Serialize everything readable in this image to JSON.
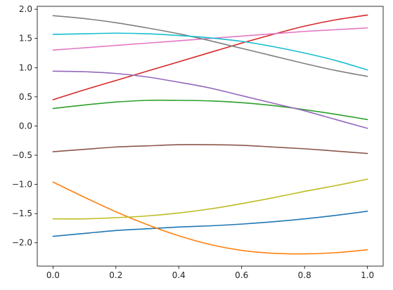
{
  "chart_data": {
    "type": "line",
    "title": "",
    "xlabel": "",
    "ylabel": "",
    "xlim": [
      -0.05,
      1.05
    ],
    "ylim": [
      -2.4,
      2.05
    ],
    "grid": false,
    "legend": "none",
    "x_ticks": [
      {
        "value": 0.0,
        "label": "0.0"
      },
      {
        "value": 0.2,
        "label": "0.2"
      },
      {
        "value": 0.4,
        "label": "0.4"
      },
      {
        "value": 0.6,
        "label": "0.6"
      },
      {
        "value": 0.8,
        "label": "0.8"
      },
      {
        "value": 1.0,
        "label": "1.0"
      }
    ],
    "y_ticks": [
      {
        "value": 2.0,
        "label": "2.0"
      },
      {
        "value": 1.5,
        "label": "1.5"
      },
      {
        "value": 1.0,
        "label": "1.0"
      },
      {
        "value": 0.5,
        "label": "0.5"
      },
      {
        "value": 0.0,
        "label": "0.0"
      },
      {
        "value": -0.5,
        "label": "−0.5"
      },
      {
        "value": -1.0,
        "label": "−1.0"
      },
      {
        "value": -1.5,
        "label": "−1.5"
      },
      {
        "value": -2.0,
        "label": "−2.0"
      }
    ],
    "x": [
      0.0,
      0.1,
      0.2,
      0.3,
      0.4,
      0.5,
      0.6,
      0.7,
      0.8,
      0.9,
      1.0
    ],
    "series": [
      {
        "color": "#1f77b4",
        "values": [
          -1.89,
          -1.84,
          -1.79,
          -1.76,
          -1.73,
          -1.71,
          -1.68,
          -1.64,
          -1.59,
          -1.53,
          -1.46
        ]
      },
      {
        "color": "#ff7f0e",
        "values": [
          -0.96,
          -1.22,
          -1.47,
          -1.69,
          -1.88,
          -2.03,
          -2.13,
          -2.18,
          -2.19,
          -2.17,
          -2.12
        ]
      },
      {
        "color": "#2ca02c",
        "values": [
          0.3,
          0.36,
          0.41,
          0.44,
          0.44,
          0.43,
          0.4,
          0.35,
          0.28,
          0.2,
          0.11
        ]
      },
      {
        "color": "#d62728",
        "values": [
          0.45,
          0.62,
          0.78,
          0.94,
          1.1,
          1.26,
          1.42,
          1.57,
          1.71,
          1.82,
          1.9
        ]
      },
      {
        "color": "#9467bd",
        "values": [
          0.94,
          0.93,
          0.9,
          0.84,
          0.75,
          0.65,
          0.52,
          0.39,
          0.26,
          0.11,
          -0.04
        ]
      },
      {
        "color": "#8c564b",
        "values": [
          -0.44,
          -0.4,
          -0.36,
          -0.34,
          -0.32,
          -0.32,
          -0.33,
          -0.36,
          -0.39,
          -0.43,
          -0.47
        ]
      },
      {
        "color": "#e377c2",
        "values": [
          1.3,
          1.34,
          1.38,
          1.42,
          1.46,
          1.5,
          1.54,
          1.58,
          1.62,
          1.65,
          1.68
        ]
      },
      {
        "color": "#7f7f7f",
        "values": [
          1.89,
          1.84,
          1.77,
          1.68,
          1.58,
          1.46,
          1.33,
          1.2,
          1.07,
          0.95,
          0.85
        ]
      },
      {
        "color": "#bcbd22",
        "values": [
          -1.59,
          -1.59,
          -1.57,
          -1.54,
          -1.49,
          -1.42,
          -1.33,
          -1.23,
          -1.12,
          -1.02,
          -0.91
        ]
      },
      {
        "color": "#17becf",
        "values": [
          1.57,
          1.58,
          1.59,
          1.58,
          1.55,
          1.51,
          1.45,
          1.36,
          1.25,
          1.12,
          0.96
        ]
      }
    ]
  }
}
